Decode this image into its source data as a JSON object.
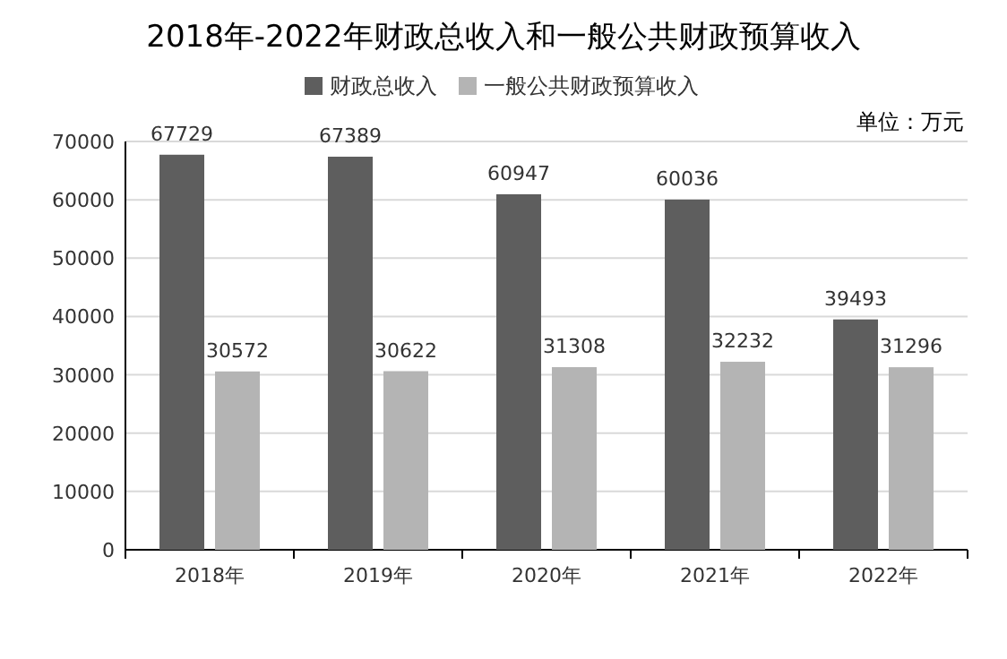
{
  "chart_data": {
    "type": "bar",
    "title": "2018年-2022年财政总收入和一般公共财政预算收入",
    "categories": [
      "2018年",
      "2019年",
      "2020年",
      "2021年",
      "2022年"
    ],
    "series": [
      {
        "name": "财政总收入",
        "color": "#5e5e5e",
        "values": [
          67729,
          67389,
          60947,
          60036,
          39493
        ]
      },
      {
        "name": "一般公共财政预算收入",
        "color": "#b4b4b4",
        "values": [
          30572,
          30622,
          31308,
          32232,
          31296
        ]
      }
    ],
    "ylim": [
      0,
      70000
    ],
    "yticks": [
      0,
      10000,
      20000,
      30000,
      40000,
      50000,
      60000,
      70000
    ],
    "grid": "y",
    "legend": "top",
    "data_labels": true,
    "annotations": [
      "单位：万元"
    ]
  }
}
